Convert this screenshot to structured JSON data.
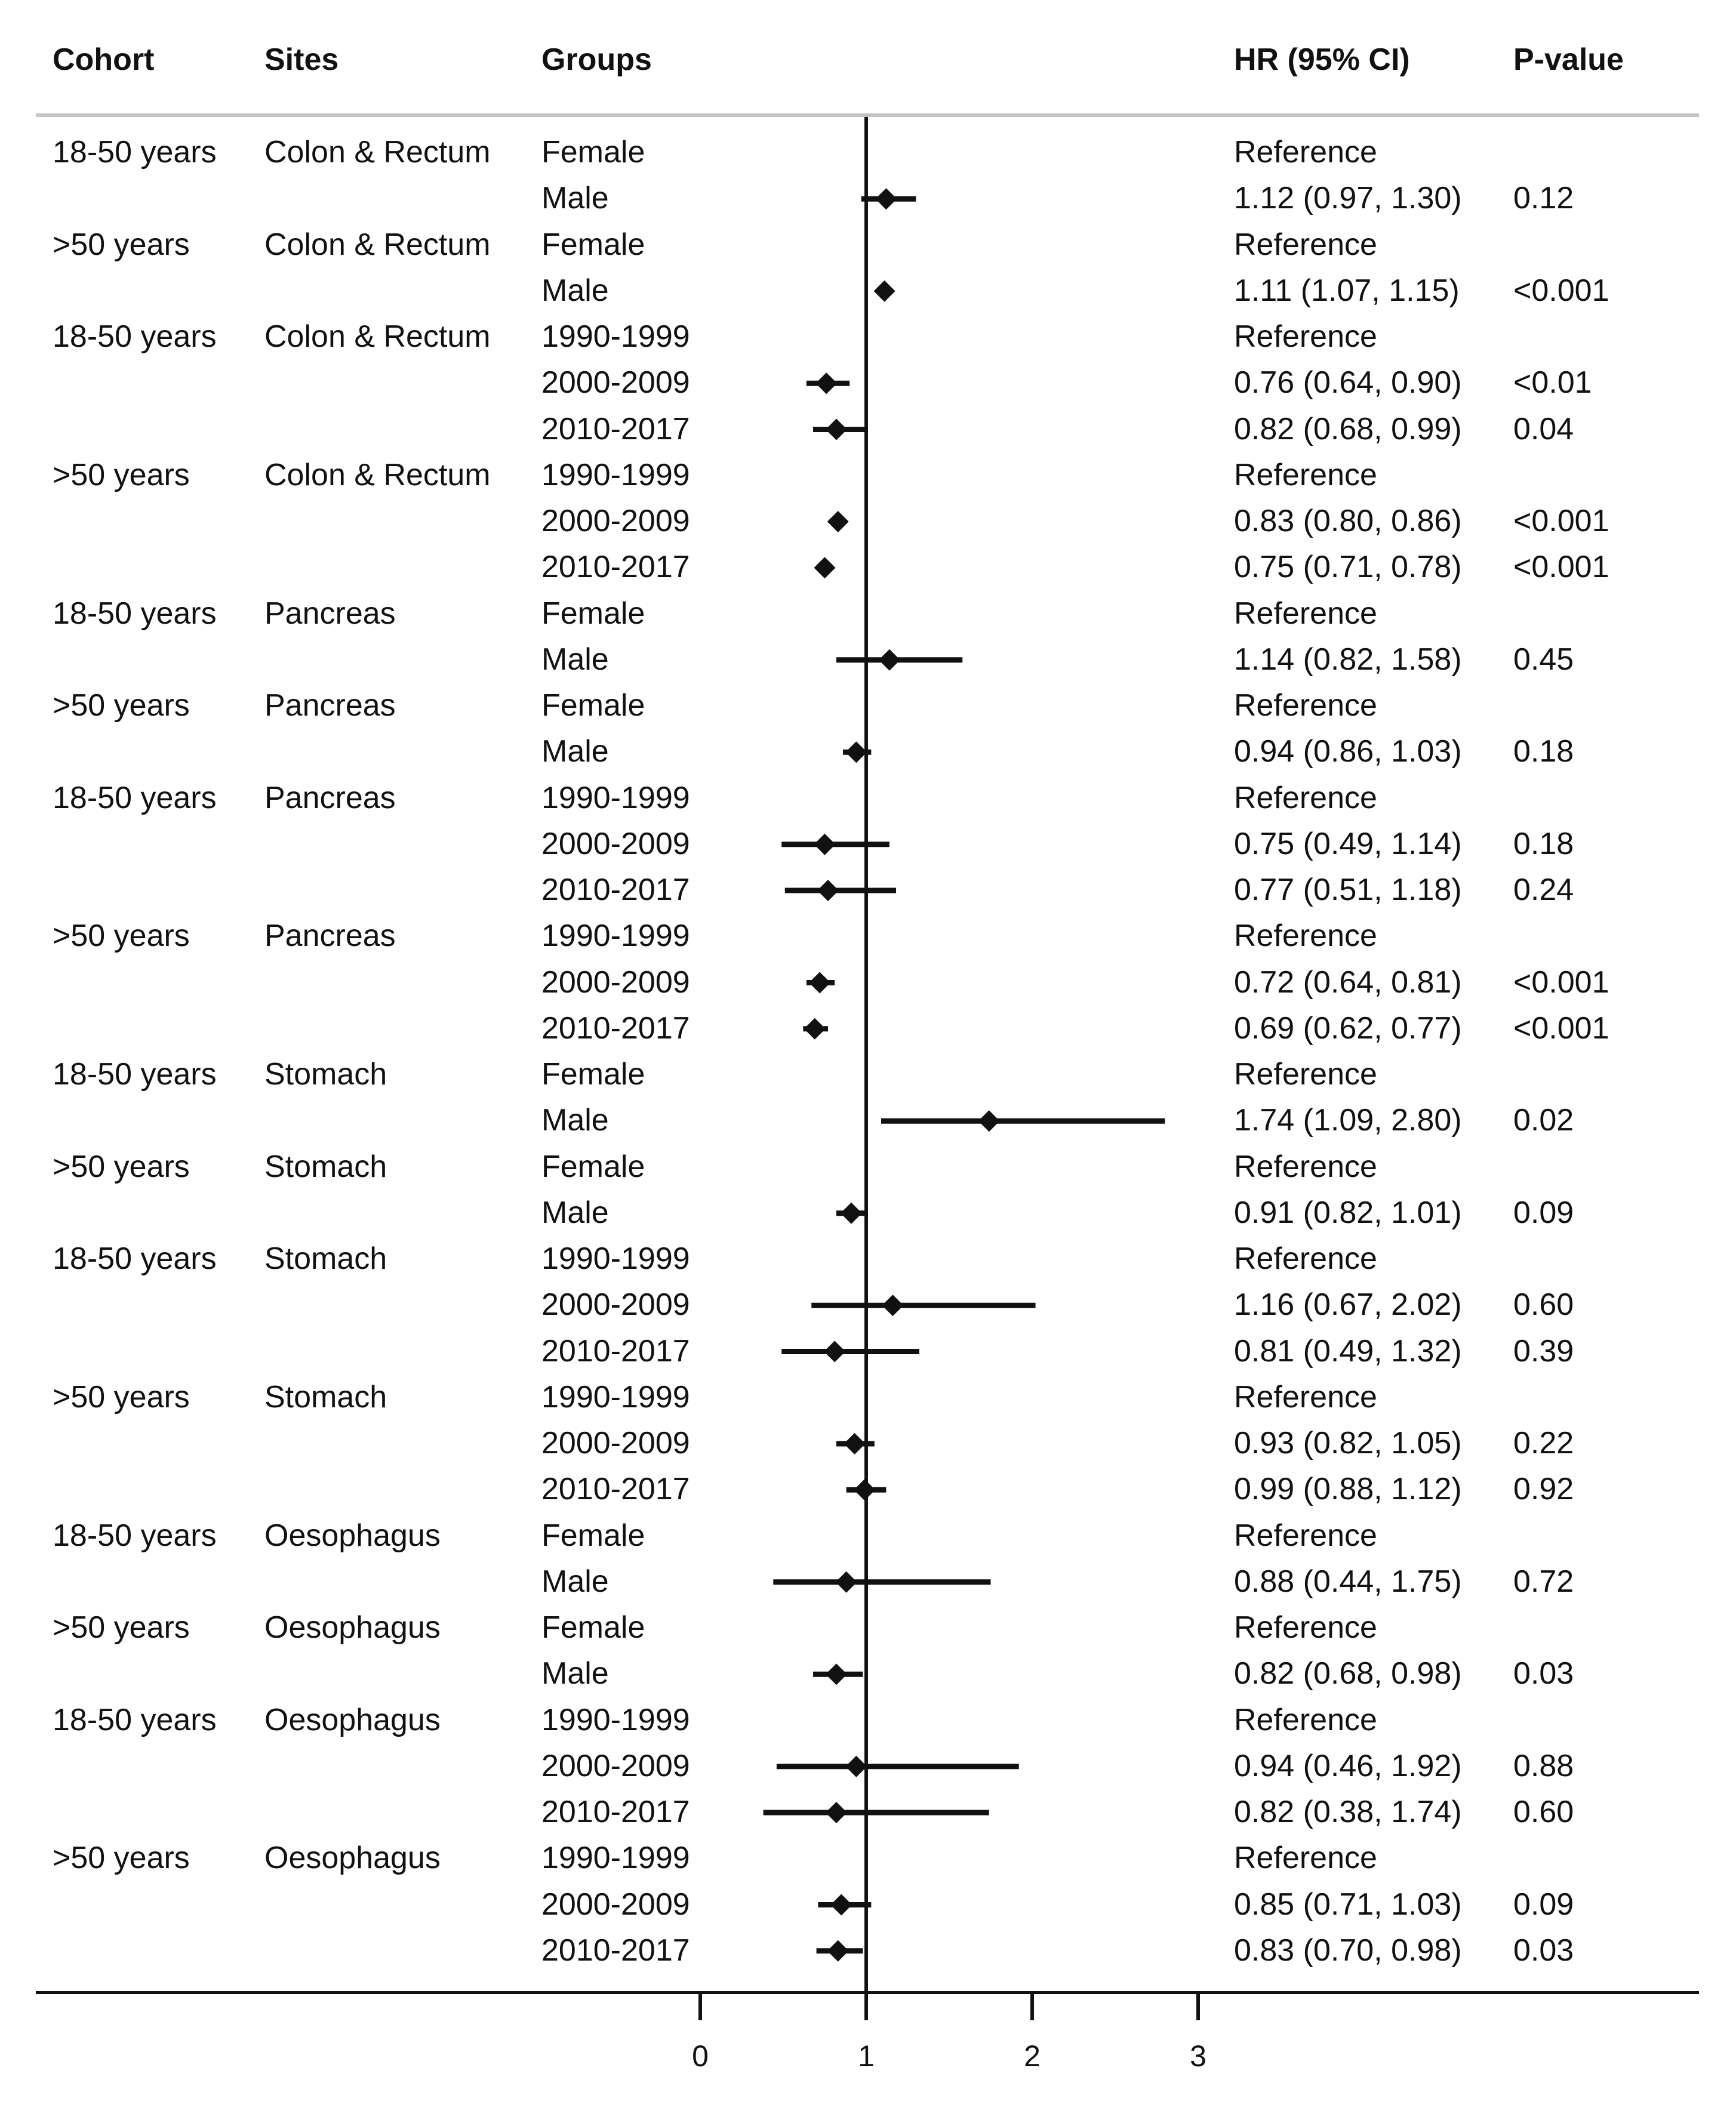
{
  "headers": {
    "cohort": "Cohort",
    "sites": "Sites",
    "groups": "Groups",
    "hr": "HR (95% CI)",
    "pvalue": "P-value"
  },
  "chart_data": {
    "type": "forest",
    "reference_line": 1,
    "xlim": [
      0,
      3
    ],
    "xticks": [
      0,
      1,
      2,
      3
    ],
    "rows": [
      {
        "cohort": "18-50 years",
        "site": "Colon & Rectum",
        "group": "Female",
        "hr_text": "Reference",
        "p": ""
      },
      {
        "cohort": "",
        "site": "",
        "group": "Male",
        "hr_text": "1.12 (0.97, 1.30)",
        "p": "0.12",
        "hr": 1.12,
        "lo": 0.97,
        "hi": 1.3
      },
      {
        "cohort": ">50 years",
        "site": "Colon & Rectum",
        "group": "Female",
        "hr_text": "Reference",
        "p": ""
      },
      {
        "cohort": "",
        "site": "",
        "group": "Male",
        "hr_text": "1.11 (1.07, 1.15)",
        "p": "<0.001",
        "hr": 1.11,
        "lo": 1.07,
        "hi": 1.15
      },
      {
        "cohort": "18-50 years",
        "site": "Colon & Rectum",
        "group": "1990-1999",
        "hr_text": "Reference",
        "p": ""
      },
      {
        "cohort": "",
        "site": "",
        "group": "2000-2009",
        "hr_text": "0.76 (0.64, 0.90)",
        "p": "<0.01",
        "hr": 0.76,
        "lo": 0.64,
        "hi": 0.9
      },
      {
        "cohort": "",
        "site": "",
        "group": "2010-2017",
        "hr_text": "0.82 (0.68, 0.99)",
        "p": "0.04",
        "hr": 0.82,
        "lo": 0.68,
        "hi": 0.99
      },
      {
        "cohort": ">50 years",
        "site": "Colon & Rectum",
        "group": "1990-1999",
        "hr_text": "Reference",
        "p": ""
      },
      {
        "cohort": "",
        "site": "",
        "group": "2000-2009",
        "hr_text": "0.83 (0.80, 0.86)",
        "p": "<0.001",
        "hr": 0.83,
        "lo": 0.8,
        "hi": 0.86
      },
      {
        "cohort": "",
        "site": "",
        "group": "2010-2017",
        "hr_text": "0.75 (0.71, 0.78)",
        "p": "<0.001",
        "hr": 0.75,
        "lo": 0.71,
        "hi": 0.78
      },
      {
        "cohort": "18-50 years",
        "site": "Pancreas",
        "group": "Female",
        "hr_text": "Reference",
        "p": ""
      },
      {
        "cohort": "",
        "site": "",
        "group": "Male",
        "hr_text": "1.14 (0.82, 1.58)",
        "p": "0.45",
        "hr": 1.14,
        "lo": 0.82,
        "hi": 1.58
      },
      {
        "cohort": ">50 years",
        "site": "Pancreas",
        "group": "Female",
        "hr_text": "Reference",
        "p": ""
      },
      {
        "cohort": "",
        "site": "",
        "group": "Male",
        "hr_text": "0.94 (0.86, 1.03)",
        "p": "0.18",
        "hr": 0.94,
        "lo": 0.86,
        "hi": 1.03
      },
      {
        "cohort": "18-50 years",
        "site": "Pancreas",
        "group": "1990-1999",
        "hr_text": "Reference",
        "p": ""
      },
      {
        "cohort": "",
        "site": "",
        "group": "2000-2009",
        "hr_text": "0.75 (0.49, 1.14)",
        "p": "0.18",
        "hr": 0.75,
        "lo": 0.49,
        "hi": 1.14
      },
      {
        "cohort": "",
        "site": "",
        "group": "2010-2017",
        "hr_text": "0.77 (0.51, 1.18)",
        "p": "0.24",
        "hr": 0.77,
        "lo": 0.51,
        "hi": 1.18
      },
      {
        "cohort": ">50 years",
        "site": "Pancreas",
        "group": "1990-1999",
        "hr_text": "Reference",
        "p": ""
      },
      {
        "cohort": "",
        "site": "",
        "group": "2000-2009",
        "hr_text": "0.72 (0.64, 0.81)",
        "p": "<0.001",
        "hr": 0.72,
        "lo": 0.64,
        "hi": 0.81
      },
      {
        "cohort": "",
        "site": "",
        "group": "2010-2017",
        "hr_text": "0.69 (0.62, 0.77)",
        "p": "<0.001",
        "hr": 0.69,
        "lo": 0.62,
        "hi": 0.77
      },
      {
        "cohort": "18-50 years",
        "site": "Stomach",
        "group": "Female",
        "hr_text": "Reference",
        "p": ""
      },
      {
        "cohort": "",
        "site": "",
        "group": "Male",
        "hr_text": "1.74 (1.09, 2.80)",
        "p": "0.02",
        "hr": 1.74,
        "lo": 1.09,
        "hi": 2.8
      },
      {
        "cohort": ">50 years",
        "site": "Stomach",
        "group": "Female",
        "hr_text": "Reference",
        "p": ""
      },
      {
        "cohort": "",
        "site": "",
        "group": "Male",
        "hr_text": "0.91 (0.82, 1.01)",
        "p": "0.09",
        "hr": 0.91,
        "lo": 0.82,
        "hi": 1.01
      },
      {
        "cohort": "18-50 years",
        "site": "Stomach",
        "group": "1990-1999",
        "hr_text": "Reference",
        "p": ""
      },
      {
        "cohort": "",
        "site": "",
        "group": "2000-2009",
        "hr_text": "1.16 (0.67, 2.02)",
        "p": "0.60",
        "hr": 1.16,
        "lo": 0.67,
        "hi": 2.02
      },
      {
        "cohort": "",
        "site": "",
        "group": "2010-2017",
        "hr_text": "0.81 (0.49, 1.32)",
        "p": "0.39",
        "hr": 0.81,
        "lo": 0.49,
        "hi": 1.32
      },
      {
        "cohort": ">50 years",
        "site": "Stomach",
        "group": "1990-1999",
        "hr_text": "Reference",
        "p": ""
      },
      {
        "cohort": "",
        "site": "",
        "group": "2000-2009",
        "hr_text": "0.93 (0.82, 1.05)",
        "p": "0.22",
        "hr": 0.93,
        "lo": 0.82,
        "hi": 1.05
      },
      {
        "cohort": "",
        "site": "",
        "group": "2010-2017",
        "hr_text": "0.99 (0.88, 1.12)",
        "p": "0.92",
        "hr": 0.99,
        "lo": 0.88,
        "hi": 1.12
      },
      {
        "cohort": "18-50 years",
        "site": "Oesophagus",
        "group": "Female",
        "hr_text": "Reference",
        "p": ""
      },
      {
        "cohort": "",
        "site": "",
        "group": "Male",
        "hr_text": "0.88 (0.44, 1.75)",
        "p": "0.72",
        "hr": 0.88,
        "lo": 0.44,
        "hi": 1.75
      },
      {
        "cohort": ">50 years",
        "site": "Oesophagus",
        "group": "Female",
        "hr_text": "Reference",
        "p": ""
      },
      {
        "cohort": "",
        "site": "",
        "group": "Male",
        "hr_text": "0.82 (0.68, 0.98)",
        "p": "0.03",
        "hr": 0.82,
        "lo": 0.68,
        "hi": 0.98
      },
      {
        "cohort": "18-50 years",
        "site": "Oesophagus",
        "group": "1990-1999",
        "hr_text": "Reference",
        "p": ""
      },
      {
        "cohort": "",
        "site": "",
        "group": "2000-2009",
        "hr_text": "0.94 (0.46, 1.92)",
        "p": "0.88",
        "hr": 0.94,
        "lo": 0.46,
        "hi": 1.92
      },
      {
        "cohort": "",
        "site": "",
        "group": "2010-2017",
        "hr_text": "0.82 (0.38, 1.74)",
        "p": "0.60",
        "hr": 0.82,
        "lo": 0.38,
        "hi": 1.74
      },
      {
        "cohort": ">50 years",
        "site": "Oesophagus",
        "group": "1990-1999",
        "hr_text": "Reference",
        "p": ""
      },
      {
        "cohort": "",
        "site": "",
        "group": "2000-2009",
        "hr_text": "0.85 (0.71, 1.03)",
        "p": "0.09",
        "hr": 0.85,
        "lo": 0.71,
        "hi": 1.03
      },
      {
        "cohort": "",
        "site": "",
        "group": "2010-2017",
        "hr_text": "0.83 (0.70, 0.98)",
        "p": "0.03",
        "hr": 0.83,
        "lo": 0.7,
        "hi": 0.98
      }
    ]
  }
}
